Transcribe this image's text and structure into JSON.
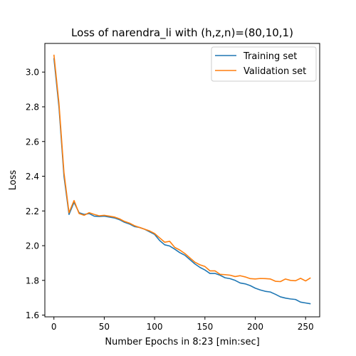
{
  "chart_data": {
    "type": "line",
    "title": "Loss of narendra_li with (h,z,n)=(80,10,1)",
    "xlabel": "Number Epochs in  8:23 [min:sec]",
    "ylabel": "Loss",
    "xlim": [
      -9,
      264
    ],
    "ylim": [
      1.59,
      3.165
    ],
    "xticks": [
      0,
      50,
      100,
      150,
      200,
      250
    ],
    "yticks": [
      1.6,
      1.8,
      2.0,
      2.2,
      2.4,
      2.6,
      2.8,
      3.0
    ],
    "xtick_labels": [
      "0",
      "50",
      "100",
      "150",
      "200",
      "250"
    ],
    "ytick_labels": [
      "1.6",
      "1.8",
      "2.0",
      "2.2",
      "2.4",
      "2.6",
      "2.8",
      "3.0"
    ],
    "grid": false,
    "legend_position": "top-right",
    "x": [
      0,
      5,
      10,
      15,
      20,
      25,
      30,
      35,
      40,
      45,
      50,
      55,
      60,
      65,
      70,
      75,
      80,
      85,
      90,
      95,
      100,
      105,
      110,
      115,
      120,
      125,
      130,
      135,
      140,
      145,
      150,
      155,
      160,
      165,
      170,
      175,
      180,
      185,
      190,
      195,
      200,
      205,
      210,
      215,
      220,
      225,
      230,
      235,
      240,
      245,
      250,
      255
    ],
    "series": [
      {
        "name": "Training set",
        "color": "#1f77b4",
        "values": [
          3.08,
          2.8,
          2.4,
          2.18,
          2.25,
          2.19,
          2.18,
          2.185,
          2.17,
          2.168,
          2.17,
          2.165,
          2.16,
          2.15,
          2.135,
          2.125,
          2.11,
          2.105,
          2.095,
          2.08,
          2.065,
          2.03,
          2.005,
          1.998,
          1.98,
          1.96,
          1.945,
          1.92,
          1.895,
          1.875,
          1.86,
          1.84,
          1.84,
          1.83,
          1.815,
          1.81,
          1.8,
          1.785,
          1.78,
          1.77,
          1.755,
          1.745,
          1.737,
          1.733,
          1.72,
          1.705,
          1.698,
          1.693,
          1.69,
          1.675,
          1.67,
          1.665
        ]
      },
      {
        "name": "Validation set",
        "color": "#ff7f0e",
        "values": [
          3.1,
          2.82,
          2.42,
          2.19,
          2.26,
          2.185,
          2.175,
          2.19,
          2.18,
          2.172,
          2.175,
          2.17,
          2.165,
          2.155,
          2.14,
          2.13,
          2.115,
          2.105,
          2.095,
          2.085,
          2.07,
          2.045,
          2.02,
          2.025,
          1.99,
          1.975,
          1.955,
          1.93,
          1.905,
          1.89,
          1.88,
          1.855,
          1.855,
          1.835,
          1.833,
          1.83,
          1.822,
          1.827,
          1.82,
          1.81,
          1.808,
          1.811,
          1.81,
          1.808,
          1.795,
          1.793,
          1.808,
          1.8,
          1.798,
          1.812,
          1.797,
          1.815
        ]
      }
    ]
  }
}
